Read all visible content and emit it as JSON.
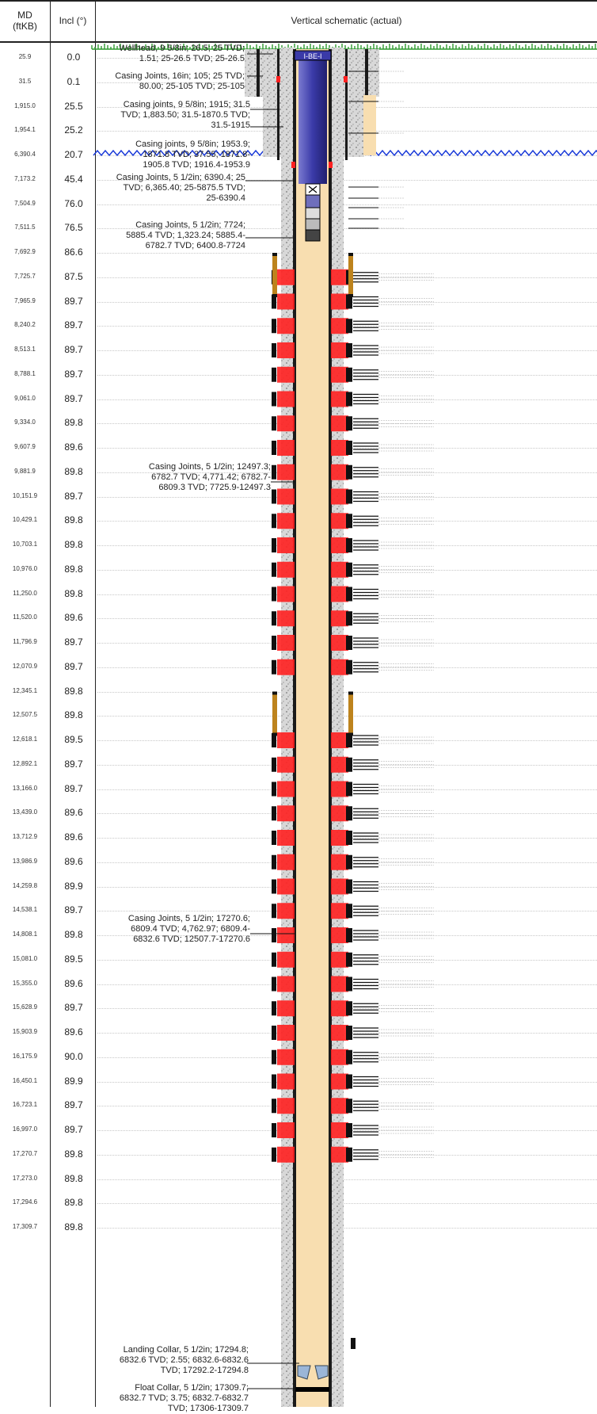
{
  "header": {
    "md_title": "MD (ftKB)",
    "incl_title": "Incl (°)",
    "schematic_title": "Vertical schematic (actual)"
  },
  "rows": [
    {
      "md": "25.9",
      "incl": "0.0"
    },
    {
      "md": "31.5",
      "incl": "0.1"
    },
    {
      "md": "1,915.0",
      "incl": "25.5"
    },
    {
      "md": "1,954.1",
      "incl": "25.2"
    },
    {
      "md": "6,390.4",
      "incl": "20.7"
    },
    {
      "md": "7,173.2",
      "incl": "45.4"
    },
    {
      "md": "7,504.9",
      "incl": "76.0"
    },
    {
      "md": "7,511.5",
      "incl": "76.5"
    },
    {
      "md": "7,692.9",
      "incl": "86.6"
    },
    {
      "md": "7,725.7",
      "incl": "87.5"
    },
    {
      "md": "7,965.9",
      "incl": "89.7"
    },
    {
      "md": "8,240.2",
      "incl": "89.7"
    },
    {
      "md": "8,513.1",
      "incl": "89.7"
    },
    {
      "md": "8,788.1",
      "incl": "89.7"
    },
    {
      "md": "9,061.0",
      "incl": "89.7"
    },
    {
      "md": "9,334.0",
      "incl": "89.8"
    },
    {
      "md": "9,607.9",
      "incl": "89.6"
    },
    {
      "md": "9,881.9",
      "incl": "89.8"
    },
    {
      "md": "10,151.9",
      "incl": "89.7"
    },
    {
      "md": "10,429.1",
      "incl": "89.8"
    },
    {
      "md": "10,703.1",
      "incl": "89.8"
    },
    {
      "md": "10,976.0",
      "incl": "89.8"
    },
    {
      "md": "11,250.0",
      "incl": "89.8"
    },
    {
      "md": "11,520.0",
      "incl": "89.6"
    },
    {
      "md": "11,796.9",
      "incl": "89.7"
    },
    {
      "md": "12,070.9",
      "incl": "89.7"
    },
    {
      "md": "12,345.1",
      "incl": "89.8"
    },
    {
      "md": "12,507.5",
      "incl": "89.8"
    },
    {
      "md": "12,618.1",
      "incl": "89.5"
    },
    {
      "md": "12,892.1",
      "incl": "89.7"
    },
    {
      "md": "13,166.0",
      "incl": "89.7"
    },
    {
      "md": "13,439.0",
      "incl": "89.6"
    },
    {
      "md": "13,712.9",
      "incl": "89.6"
    },
    {
      "md": "13,986.9",
      "incl": "89.6"
    },
    {
      "md": "14,259.8",
      "incl": "89.9"
    },
    {
      "md": "14,538.1",
      "incl": "89.7"
    },
    {
      "md": "14,808.1",
      "incl": "89.8"
    },
    {
      "md": "15,081.0",
      "incl": "89.5"
    },
    {
      "md": "15,355.0",
      "incl": "89.6"
    },
    {
      "md": "15,628.9",
      "incl": "89.7"
    },
    {
      "md": "15,903.9",
      "incl": "89.6"
    },
    {
      "md": "16,175.9",
      "incl": "90.0"
    },
    {
      "md": "16,450.1",
      "incl": "89.9"
    },
    {
      "md": "16,723.1",
      "incl": "89.7"
    },
    {
      "md": "16,997.0",
      "incl": "89.7"
    },
    {
      "md": "17,270.7",
      "incl": "89.8"
    },
    {
      "md": "17,273.0",
      "incl": "89.8"
    },
    {
      "md": "17,294.6",
      "incl": "89.8"
    },
    {
      "md": "17,309.7",
      "incl": "89.8"
    }
  ],
  "labels": [
    {
      "lines": [
        "Wellhead, 9 5/8in; 26.5; 25 TVD;",
        "1.51; 25-26.5 TVD; 25-26.5"
      ]
    },
    {
      "lines": [
        "Casing Joints, 16in; 105; 25 TVD;",
        "80.00; 25-105 TVD; 25-105"
      ]
    },
    {
      "lines": [
        "Casing joints, 9 5/8in; 1915; 31.5",
        "TVD; 1,883.50; 31.5-1870.5 TVD;",
        "31.5-1915"
      ]
    },
    {
      "lines": [
        "Casing joints, 9 5/8in; 1953.9;",
        "1871.8 TVD; 37.55; 1871.8-",
        "1905.8 TVD; 1916.4-1953.9"
      ]
    },
    {
      "lines": [
        "Casing Joints, 5 1/2in; 6390.4; 25",
        "TVD; 6,365.40; 25-5875.5 TVD;",
        "25-6390.4"
      ]
    },
    {
      "lines": [
        "Casing Joints, 5 1/2in; 7724;",
        "5885.4 TVD; 1,323.24; 5885.4-",
        "6782.7 TVD; 6400.8-7724"
      ]
    },
    {
      "lines": [
        "Casing Joints, 5 1/2in; 12497.3;",
        "6782.7 TVD; 4,771.42; 6782.7-",
        "6809.3 TVD; 7725.9-12497.3"
      ]
    },
    {
      "lines": [
        "Casing Joints, 5 1/2in; 17270.6;",
        "6809.4 TVD; 4,762.97; 6809.4-",
        "6832.6 TVD; 12507.7-17270.6"
      ]
    },
    {
      "lines": [
        "Landing Collar, 5 1/2in; 17294.8;",
        "6832.6 TVD; 2.55; 6832.6-6832.6",
        "TVD; 17292.2-17294.8"
      ]
    },
    {
      "lines": [
        "Float Collar, 5 1/2in; 17309.7;",
        "6832.7 TVD; 3.75; 6832.7-6832.7",
        "TVD; 17306-17309.7"
      ]
    }
  ],
  "wellhead_tag": "I-BE-I",
  "colors": {
    "tubing": "#3a3aa8",
    "perforation": "#ff2020",
    "cement": "#d8d8d8",
    "wellbore": "#f8deb0",
    "grass": "#2f9a2f",
    "water": "#1a3ad8"
  }
}
